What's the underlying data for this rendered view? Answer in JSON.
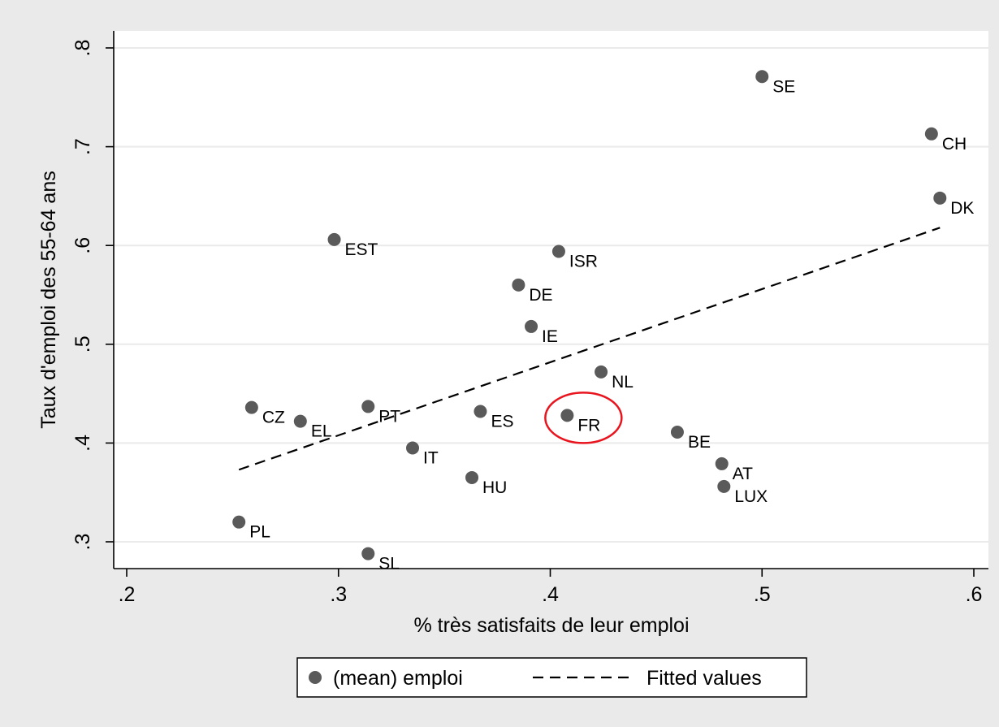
{
  "chart_data": {
    "type": "scatter",
    "xlabel": "% très satisfaits de leur emploi",
    "ylabel": "Taux d'emploi des 55-64 ans",
    "xlim": [
      0.2,
      0.6
    ],
    "ylim": [
      0.28,
      0.82
    ],
    "xticks": [
      0.2,
      0.3,
      0.4,
      0.5,
      0.6
    ],
    "xtick_labels": [
      ".2",
      ".3",
      ".4",
      ".5",
      ".6"
    ],
    "yticks": [
      0.3,
      0.4,
      0.5,
      0.6,
      0.7,
      0.8
    ],
    "ytick_labels": [
      ".3",
      ".4",
      ".5",
      ".6",
      ".7",
      ".8"
    ],
    "grid": "horizontal",
    "legend_position": "bottom",
    "colors": {
      "outer_background": "#eaeaea",
      "plot_background": "#ffffff",
      "marker": "#5a5a5a",
      "fitted_line": "#000000",
      "highlight_circle": "#e8141e",
      "grid": "#eaeaea"
    },
    "series": [
      {
        "name": "(mean) emploi",
        "kind": "scatter",
        "points": [
          {
            "label": "SE",
            "x": 0.5,
            "y": 0.771
          },
          {
            "label": "CH",
            "x": 0.58,
            "y": 0.713
          },
          {
            "label": "DK",
            "x": 0.584,
            "y": 0.648
          },
          {
            "label": "EST",
            "x": 0.298,
            "y": 0.606
          },
          {
            "label": "ISR",
            "x": 0.404,
            "y": 0.594
          },
          {
            "label": "DE",
            "x": 0.385,
            "y": 0.56
          },
          {
            "label": "IE",
            "x": 0.391,
            "y": 0.518
          },
          {
            "label": "NL",
            "x": 0.424,
            "y": 0.472
          },
          {
            "label": "CZ",
            "x": 0.259,
            "y": 0.436
          },
          {
            "label": "PT",
            "x": 0.314,
            "y": 0.437
          },
          {
            "label": "ES",
            "x": 0.367,
            "y": 0.432
          },
          {
            "label": "FR",
            "x": 0.408,
            "y": 0.428
          },
          {
            "label": "EL",
            "x": 0.282,
            "y": 0.422
          },
          {
            "label": "BE",
            "x": 0.46,
            "y": 0.411
          },
          {
            "label": "IT",
            "x": 0.335,
            "y": 0.395
          },
          {
            "label": "AT",
            "x": 0.481,
            "y": 0.379
          },
          {
            "label": "HU",
            "x": 0.363,
            "y": 0.365
          },
          {
            "label": "LUX",
            "x": 0.482,
            "y": 0.356
          },
          {
            "label": "PL",
            "x": 0.253,
            "y": 0.32
          },
          {
            "label": "SL",
            "x": 0.314,
            "y": 0.288
          }
        ]
      },
      {
        "name": "Fitted values",
        "kind": "line",
        "style": "dashed",
        "x": [
          0.253,
          0.584
        ],
        "y": [
          0.373,
          0.618
        ]
      }
    ],
    "annotations": [
      {
        "type": "ellipse",
        "target": "FR",
        "color": "#e8141e"
      }
    ]
  }
}
